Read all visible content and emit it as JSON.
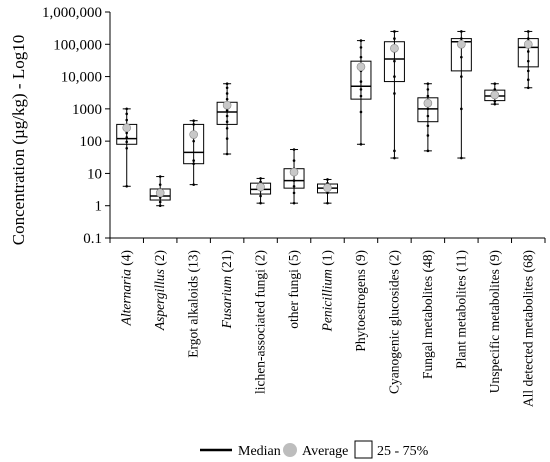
{
  "chart_data": {
    "type": "box",
    "ylabel": "Concentration (µg/kg) - Log10",
    "y_scale": "log10",
    "ylim": [
      0.1,
      1000000
    ],
    "y_ticks": [
      "0.1",
      "1",
      "10",
      "100",
      "1000",
      "10,000",
      "100,000",
      "1,000,000"
    ],
    "grid": false,
    "legend_position": "bottom",
    "legend": {
      "median": "Median",
      "average": "Average",
      "box": "25 - 75%"
    },
    "categories": [
      {
        "label": "Alternaria (4)",
        "italic": true,
        "min": 4,
        "q1": 80,
        "median": 120,
        "q3": 330,
        "max": 1000,
        "mean": 260,
        "points": [
          4,
          60,
          95,
          130,
          180,
          240,
          320,
          450,
          700,
          1000
        ]
      },
      {
        "label": "Aspergillus (2)",
        "italic": true,
        "min": 1,
        "q1": 1.5,
        "median": 2,
        "q3": 3.3,
        "max": 8,
        "mean": 2.5,
        "points": [
          1,
          1.3,
          1.8,
          2.5,
          3,
          4.5,
          8
        ]
      },
      {
        "label": "Ergot alkaloids (13)",
        "italic": false,
        "min": 4.5,
        "q1": 20,
        "median": 45,
        "q3": 330,
        "max": 430,
        "mean": 160,
        "points": [
          4.5,
          20,
          25,
          100,
          330,
          430
        ]
      },
      {
        "label": "Fusarium (21)",
        "italic": true,
        "min": 40,
        "q1": 330,
        "median": 800,
        "q3": 1600,
        "max": 6000,
        "mean": 1300,
        "points": [
          40,
          120,
          250,
          400,
          600,
          900,
          1200,
          2000,
          3000,
          4500,
          6000
        ]
      },
      {
        "label": "lichen-associated fungi (2)",
        "italic": false,
        "min": 1.2,
        "q1": 2.3,
        "median": 3.2,
        "q3": 5,
        "max": 7,
        "mean": 3.8,
        "points": [
          1.2,
          2,
          3,
          4,
          5.5,
          7
        ]
      },
      {
        "label": "other fungi (5)",
        "italic": false,
        "min": 1.2,
        "q1": 3.5,
        "median": 6,
        "q3": 14,
        "max": 55,
        "mean": 11,
        "points": [
          1.2,
          2.5,
          4,
          6,
          9,
          14,
          25,
          55
        ]
      },
      {
        "label": "Penicillium (1)",
        "italic": true,
        "min": 1.2,
        "q1": 2.5,
        "median": 3.5,
        "q3": 4.7,
        "max": 6.5,
        "mean": 3.6,
        "points": [
          1.2,
          2.5,
          3.5,
          5,
          6.5
        ]
      },
      {
        "label": "Phytoestrogens (9)",
        "italic": false,
        "min": 80,
        "q1": 2000,
        "median": 5000,
        "q3": 30000,
        "max": 130000,
        "mean": 20000,
        "points": [
          80,
          800,
          2500,
          4000,
          7000,
          15000,
          40000,
          80000,
          130000
        ]
      },
      {
        "label": "Cyanogenic glucosides (2)",
        "italic": false,
        "min": 30,
        "q1": 7000,
        "median": 35000,
        "q3": 120000,
        "max": 250000,
        "mean": 75000,
        "points": [
          30,
          50,
          3000,
          10000,
          30000,
          60000,
          150000,
          250000
        ]
      },
      {
        "label": "Fungal metabolites (48)",
        "italic": false,
        "min": 50,
        "q1": 400,
        "median": 1000,
        "q3": 2200,
        "max": 6000,
        "mean": 1500,
        "points": [
          50,
          150,
          300,
          600,
          1000,
          1500,
          2500,
          4000,
          6000
        ]
      },
      {
        "label": "Plant metabolites (11)",
        "italic": false,
        "min": 30,
        "q1": 15000,
        "median": 120000,
        "q3": 150000,
        "max": 250000,
        "mean": 100000,
        "points": [
          30,
          1000,
          10000,
          40000,
          100000,
          150000,
          250000
        ]
      },
      {
        "label": "Unspecific metabolites (9)",
        "italic": false,
        "min": 1400,
        "q1": 1800,
        "median": 2500,
        "q3": 3800,
        "max": 6000,
        "mean": 2700,
        "points": [
          1400,
          1700,
          2200,
          3000,
          4000,
          6000
        ]
      },
      {
        "label": "All detected metabolites (68)",
        "italic": false,
        "min": 4500,
        "q1": 20000,
        "median": 80000,
        "q3": 150000,
        "max": 250000,
        "mean": 100000,
        "points": [
          4500,
          8000,
          15000,
          30000,
          60000,
          100000,
          150000,
          250000
        ]
      }
    ]
  }
}
